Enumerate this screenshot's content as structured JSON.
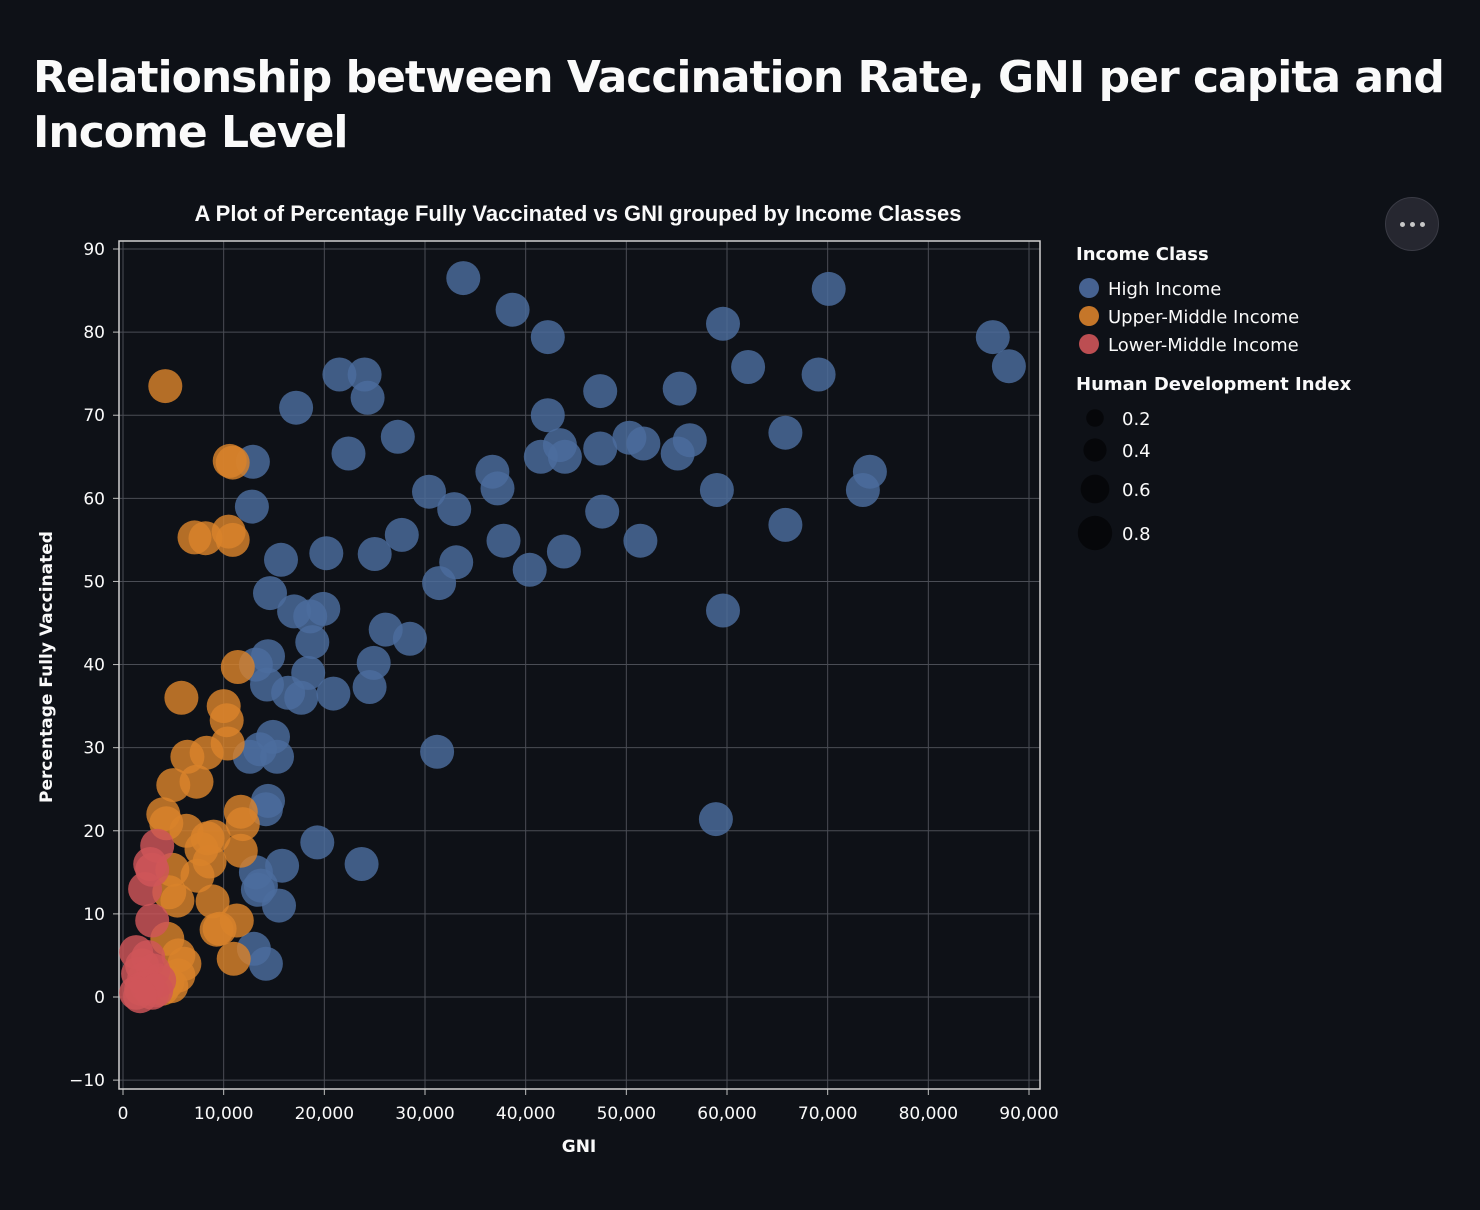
{
  "page": {
    "title": "Relationship between Vaccination Rate, GNI per capita and Income Level"
  },
  "menu": {
    "icon": "more-horizontal-icon"
  },
  "colors": {
    "background": "#0e1117",
    "grid": "#4a4d55",
    "High Income": "#4c6c9e",
    "Upper-Middle Income": "#d9822b",
    "Lower-Middle Income": "#cf5559"
  },
  "chart_data": {
    "type": "scatter",
    "title": "A Plot of Percentage Fully Vaccinated vs GNI grouped by Income Classes",
    "xlabel": "GNI",
    "ylabel": "Percentage Fully Vaccinated",
    "xlim": [
      0,
      90000
    ],
    "ylim": [
      -10,
      90
    ],
    "x_ticks": [
      0,
      10000,
      20000,
      30000,
      40000,
      50000,
      60000,
      70000,
      80000,
      90000
    ],
    "x_tick_labels": [
      "0",
      "10,000",
      "20,000",
      "30,000",
      "40,000",
      "50,000",
      "60,000",
      "70,000",
      "80,000",
      "90,000"
    ],
    "y_ticks": [
      -10,
      0,
      10,
      20,
      30,
      40,
      50,
      60,
      70,
      80,
      90
    ],
    "y_tick_labels": [
      "−10",
      "0",
      "10",
      "20",
      "30",
      "40",
      "50",
      "60",
      "70",
      "80",
      "90"
    ],
    "grid": true,
    "legend_position": "right",
    "color_legend": {
      "title": "Income Class",
      "entries": [
        "High Income",
        "Upper-Middle Income",
        "Lower-Middle Income"
      ]
    },
    "size_legend": {
      "title": "Human Development Index",
      "entries": [
        {
          "label": "0.2",
          "value": 0.2
        },
        {
          "label": "0.4",
          "value": 0.4
        },
        {
          "label": "0.6",
          "value": 0.6
        },
        {
          "label": "0.8",
          "value": 0.8
        }
      ]
    },
    "series": [
      {
        "name": "High Income",
        "points": [
          [
            33800,
            86.5
          ],
          [
            70100,
            85.2
          ],
          [
            38700,
            82.7
          ],
          [
            42200,
            79.4
          ],
          [
            86400,
            79.4
          ],
          [
            59600,
            81.0
          ],
          [
            88000,
            75.9
          ],
          [
            62100,
            75.8
          ],
          [
            69100,
            74.9
          ],
          [
            21500,
            74.9
          ],
          [
            24000,
            74.9
          ],
          [
            24300,
            72.1
          ],
          [
            17200,
            70.9
          ],
          [
            47400,
            72.9
          ],
          [
            55300,
            73.2
          ],
          [
            42200,
            70.0
          ],
          [
            27300,
            67.4
          ],
          [
            22400,
            65.4
          ],
          [
            12900,
            64.4
          ],
          [
            43400,
            66.4
          ],
          [
            41500,
            65.0
          ],
          [
            43900,
            65.0
          ],
          [
            47400,
            66.0
          ],
          [
            50300,
            67.3
          ],
          [
            51700,
            66.6
          ],
          [
            56300,
            67.0
          ],
          [
            55100,
            65.4
          ],
          [
            65800,
            67.9
          ],
          [
            74200,
            63.2
          ],
          [
            73500,
            61.0
          ],
          [
            36700,
            63.2
          ],
          [
            37200,
            61.2
          ],
          [
            30400,
            60.8
          ],
          [
            32900,
            58.7
          ],
          [
            12800,
            59.0
          ],
          [
            47600,
            58.4
          ],
          [
            59000,
            61.0
          ],
          [
            65800,
            56.8
          ],
          [
            51400,
            54.9
          ],
          [
            27700,
            55.6
          ],
          [
            37800,
            54.9
          ],
          [
            43800,
            53.6
          ],
          [
            40400,
            51.4
          ],
          [
            25000,
            53.3
          ],
          [
            20200,
            53.4
          ],
          [
            15700,
            52.6
          ],
          [
            33100,
            52.3
          ],
          [
            31400,
            49.8
          ],
          [
            14600,
            48.6
          ],
          [
            59600,
            46.5
          ],
          [
            17000,
            46.4
          ],
          [
            18600,
            45.8
          ],
          [
            19900,
            46.7
          ],
          [
            26100,
            44.2
          ],
          [
            28500,
            43.1
          ],
          [
            18800,
            42.7
          ],
          [
            14400,
            41.0
          ],
          [
            13200,
            40.0
          ],
          [
            24900,
            40.2
          ],
          [
            18400,
            39.0
          ],
          [
            14300,
            37.6
          ],
          [
            16400,
            36.6
          ],
          [
            17700,
            36.0
          ],
          [
            20900,
            36.5
          ],
          [
            24500,
            37.3
          ],
          [
            14900,
            31.3
          ],
          [
            13600,
            29.8
          ],
          [
            12600,
            28.9
          ],
          [
            15300,
            28.9
          ],
          [
            31200,
            29.5
          ],
          [
            14400,
            23.6
          ],
          [
            14200,
            22.6
          ],
          [
            19300,
            18.6
          ],
          [
            58900,
            21.4
          ],
          [
            23700,
            16.0
          ],
          [
            13200,
            15.0
          ],
          [
            15800,
            15.8
          ],
          [
            13400,
            12.9
          ],
          [
            13700,
            13.4
          ],
          [
            15500,
            11.0
          ],
          [
            13000,
            5.8
          ],
          [
            14200,
            4.0
          ]
        ]
      },
      {
        "name": "Upper-Middle Income",
        "points": [
          [
            4200,
            73.5
          ],
          [
            10600,
            64.5
          ],
          [
            10900,
            64.3
          ],
          [
            7100,
            55.3
          ],
          [
            8200,
            55.2
          ],
          [
            10500,
            56.0
          ],
          [
            10900,
            55.0
          ],
          [
            11400,
            39.7
          ],
          [
            5800,
            36.0
          ],
          [
            10000,
            35.0
          ],
          [
            10300,
            33.3
          ],
          [
            10400,
            30.5
          ],
          [
            6400,
            28.9
          ],
          [
            8300,
            29.4
          ],
          [
            5000,
            25.5
          ],
          [
            7300,
            25.9
          ],
          [
            4000,
            22.0
          ],
          [
            4300,
            20.9
          ],
          [
            6300,
            20.0
          ],
          [
            11700,
            22.3
          ],
          [
            11900,
            20.8
          ],
          [
            8400,
            19.1
          ],
          [
            9000,
            19.3
          ],
          [
            7800,
            17.8
          ],
          [
            11700,
            17.6
          ],
          [
            8600,
            16.3
          ],
          [
            4900,
            15.3
          ],
          [
            7400,
            14.6
          ],
          [
            4600,
            12.6
          ],
          [
            5400,
            11.6
          ],
          [
            8900,
            11.5
          ],
          [
            9300,
            8.1
          ],
          [
            9600,
            8.2
          ],
          [
            11300,
            9.2
          ],
          [
            4400,
            7.0
          ],
          [
            5500,
            5.0
          ],
          [
            6100,
            4.0
          ],
          [
            11000,
            4.6
          ],
          [
            5500,
            2.6
          ],
          [
            4400,
            1.8
          ],
          [
            3900,
            1.0
          ],
          [
            4800,
            1.3
          ]
        ]
      },
      {
        "name": "Lower-Middle Income",
        "points": [
          [
            3400,
            18.2
          ],
          [
            2700,
            16.0
          ],
          [
            2900,
            15.3
          ],
          [
            2200,
            13.0
          ],
          [
            2900,
            9.2
          ],
          [
            1300,
            5.4
          ],
          [
            2500,
            4.8
          ],
          [
            1900,
            3.8
          ],
          [
            1500,
            2.8
          ],
          [
            3000,
            3.2
          ],
          [
            2100,
            2.2
          ],
          [
            3600,
            2.0
          ],
          [
            2400,
            1.3
          ],
          [
            1800,
            1.0
          ],
          [
            1300,
            0.5
          ],
          [
            2900,
            0.5
          ],
          [
            3300,
            0.8
          ],
          [
            1700,
            0.1
          ]
        ]
      }
    ]
  }
}
